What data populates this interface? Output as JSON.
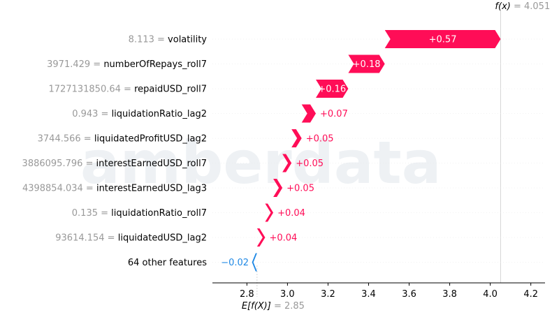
{
  "chart_data": {
    "type": "waterfall",
    "fx_label": "f(x)",
    "fx_value": "4.051",
    "base_label": "E[f(X)]",
    "base_value_text": "2.85",
    "base_value": 2.85,
    "final_value": 4.051,
    "xlim": [
      2.63,
      4.27
    ],
    "xticks": [
      2.8,
      3.0,
      3.2,
      3.4,
      3.6,
      3.8,
      4.0,
      4.2
    ],
    "xtick_labels": [
      "2.8",
      "3.0",
      "3.2",
      "3.4",
      "3.6",
      "3.8",
      "4.0",
      "4.2"
    ],
    "features": [
      {
        "value": "8.113",
        "name": "volatility",
        "contribution": 0.57,
        "label": "+0.57",
        "start": 3.48,
        "end": 4.051
      },
      {
        "value": "3971.429",
        "name": "numberOfRepays_roll7",
        "contribution": 0.18,
        "label": "+0.18",
        "start": 3.3,
        "end": 3.48
      },
      {
        "value": "1727131850.64",
        "name": "repaidUSD_roll7",
        "contribution": 0.16,
        "label": "+0.16",
        "start": 3.14,
        "end": 3.3
      },
      {
        "value": "0.943",
        "name": "liquidationRatio_lag2",
        "contribution": 0.07,
        "label": "+0.07",
        "start": 3.07,
        "end": 3.14
      },
      {
        "value": "3744.566",
        "name": "liquidatedProfitUSD_lag2",
        "contribution": 0.05,
        "label": "+0.05",
        "start": 3.02,
        "end": 3.07
      },
      {
        "value": "3886095.796",
        "name": "interestEarnedUSD_roll7",
        "contribution": 0.05,
        "label": "+0.05",
        "start": 2.975,
        "end": 3.02
      },
      {
        "value": "4398854.034",
        "name": "interestEarnedUSD_lag3",
        "contribution": 0.05,
        "label": "+0.05",
        "start": 2.93,
        "end": 2.975
      },
      {
        "value": "0.135",
        "name": "liquidationRatio_roll7",
        "contribution": 0.04,
        "label": "+0.04",
        "start": 2.89,
        "end": 2.93
      },
      {
        "value": "93614.154",
        "name": "liquidatedUSD_lag2",
        "contribution": 0.04,
        "label": "+0.04",
        "start": 2.85,
        "end": 2.89
      },
      {
        "value": "",
        "name": "64 other features",
        "contribution": -0.02,
        "label": "−0.02",
        "start": 2.85,
        "end": 2.83
      }
    ],
    "colors": {
      "positive": "#ff0d57",
      "negative": "#1e88e5",
      "axis": "#000000",
      "guide": "#cccccc"
    }
  },
  "watermark": "amberdata"
}
